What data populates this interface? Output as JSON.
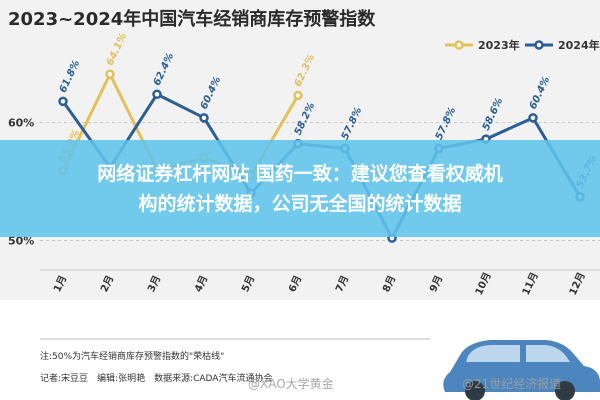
{
  "chart_data": {
    "type": "line",
    "title": "2023~2024年中国汽车经销商库存预警指数",
    "categories": [
      "1月",
      "2月",
      "3月",
      "4月",
      "5月",
      "6月",
      "7月",
      "8月",
      "9月",
      "10月",
      "11月",
      "12月"
    ],
    "series": [
      {
        "name": "2023年",
        "color": "#e3c05a",
        "values": [
          55.9,
          64.1,
          56.0,
          57.0,
          55.5,
          62.3,
          null,
          null,
          null,
          null,
          null,
          null
        ],
        "labels": [
          "55.9%",
          "64.1%",
          "",
          "",
          "",
          "62.3%",
          "",
          "",
          "",
          "",
          "",
          ""
        ]
      },
      {
        "name": "2024年",
        "color": "#2b5f93",
        "values": [
          61.8,
          56.2,
          62.4,
          60.4,
          54.0,
          58.2,
          57.8,
          50.2,
          57.8,
          58.6,
          60.4,
          53.7
        ],
        "labels": [
          "61.8%",
          "",
          "62.4%",
          "60.4%",
          "",
          "58.2%",
          "57.8%",
          "",
          "57.8%",
          "58.6%",
          "60.4%",
          "53.7%"
        ]
      }
    ],
    "ylim": [
      47.5,
      67
    ],
    "yticks": [
      {
        "value": 60,
        "label": "60%"
      },
      {
        "value": 50,
        "label": "50%"
      }
    ],
    "legend_position": "top-right",
    "grid": false
  },
  "footnote": "注:50%为汽车经销商库存预警指数的\"荣枯线\"",
  "credits": "记者:宋豆豆　编辑:张明艳　数据来源:CADA汽车流通协会",
  "overlay_lines": [
    "网络证券杠杆网站 国药一致：建议您查看权威机",
    "构的统计数据，公司无全国的统计数据"
  ],
  "watermarks": [
    "@XAO大学黄金",
    "@21世纪经济报道"
  ]
}
